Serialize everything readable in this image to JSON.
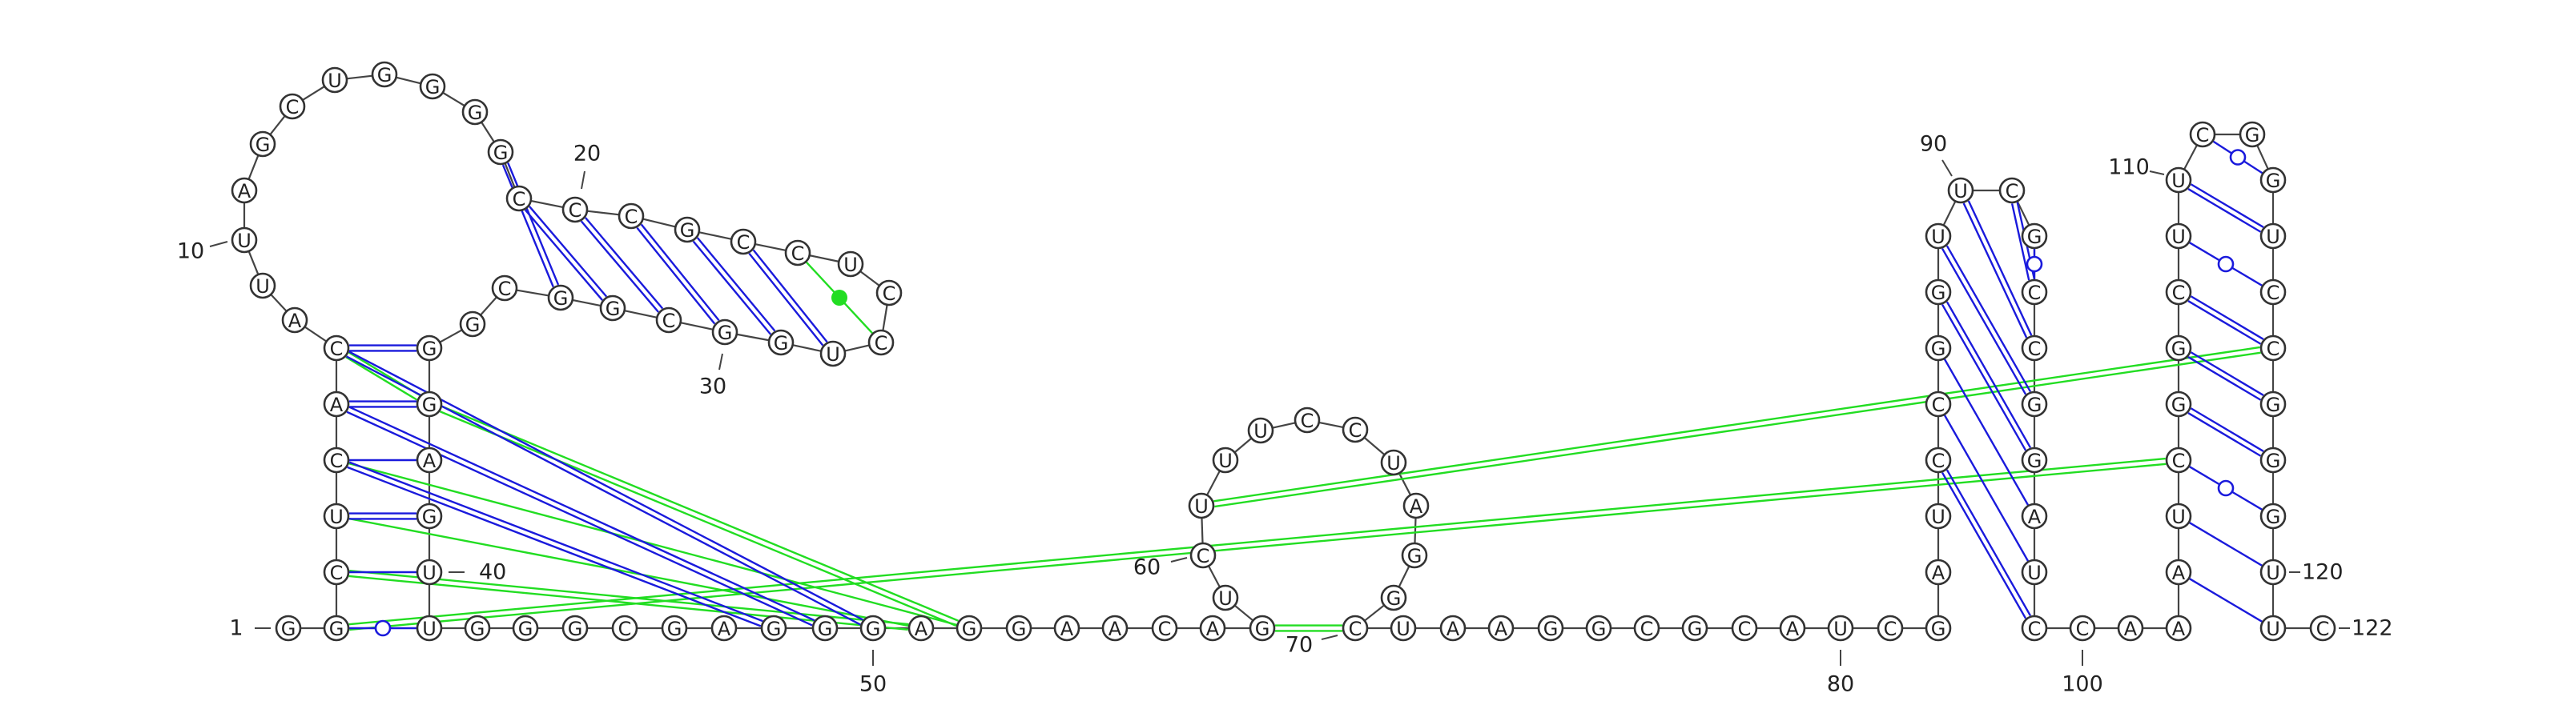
{
  "diagram": {
    "type": "rna-secondary-structure",
    "colors": {
      "canonical_pair": "#1a1adc",
      "wobble_pair": "#1a1adc",
      "tertiary_interaction": "#22dd22",
      "backbone": "#444444"
    },
    "nucleotides": [
      {
        "i": 1,
        "b": "G"
      },
      {
        "i": 2,
        "b": "G"
      },
      {
        "i": 3,
        "b": "C"
      },
      {
        "i": 4,
        "b": "U"
      },
      {
        "i": 5,
        "b": "C"
      },
      {
        "i": 6,
        "b": "A"
      },
      {
        "i": 7,
        "b": "C"
      },
      {
        "i": 8,
        "b": "A"
      },
      {
        "i": 9,
        "b": "U"
      },
      {
        "i": 10,
        "b": "U"
      },
      {
        "i": 11,
        "b": "A"
      },
      {
        "i": 12,
        "b": "G"
      },
      {
        "i": 13,
        "b": "C"
      },
      {
        "i": 14,
        "b": "U"
      },
      {
        "i": 15,
        "b": "G"
      },
      {
        "i": 16,
        "b": "G"
      },
      {
        "i": 17,
        "b": "G"
      },
      {
        "i": 18,
        "b": "G"
      },
      {
        "i": 19,
        "b": "C"
      },
      {
        "i": 20,
        "b": "C"
      },
      {
        "i": 21,
        "b": "C"
      },
      {
        "i": 22,
        "b": "G"
      },
      {
        "i": 23,
        "b": "C"
      },
      {
        "i": 24,
        "b": "C"
      },
      {
        "i": 25,
        "b": "U"
      },
      {
        "i": 26,
        "b": "C"
      },
      {
        "i": 27,
        "b": "C"
      },
      {
        "i": 28,
        "b": "U"
      },
      {
        "i": 29,
        "b": "G"
      },
      {
        "i": 30,
        "b": "G"
      },
      {
        "i": 31,
        "b": "C"
      },
      {
        "i": 32,
        "b": "G"
      },
      {
        "i": 33,
        "b": "G"
      },
      {
        "i": 34,
        "b": "C"
      },
      {
        "i": 35,
        "b": "G"
      },
      {
        "i": 36,
        "b": "G"
      },
      {
        "i": 37,
        "b": "G"
      },
      {
        "i": 38,
        "b": "A"
      },
      {
        "i": 39,
        "b": "G"
      },
      {
        "i": 40,
        "b": "U"
      },
      {
        "i": 41,
        "b": "U"
      },
      {
        "i": 42,
        "b": "G"
      },
      {
        "i": 43,
        "b": "G"
      },
      {
        "i": 44,
        "b": "G"
      },
      {
        "i": 45,
        "b": "C"
      },
      {
        "i": 46,
        "b": "G"
      },
      {
        "i": 47,
        "b": "A"
      },
      {
        "i": 48,
        "b": "G"
      },
      {
        "i": 49,
        "b": "G"
      },
      {
        "i": 50,
        "b": "G"
      },
      {
        "i": 51,
        "b": "A"
      },
      {
        "i": 52,
        "b": "G"
      },
      {
        "i": 53,
        "b": "G"
      },
      {
        "i": 54,
        "b": "A"
      },
      {
        "i": 55,
        "b": "A"
      },
      {
        "i": 56,
        "b": "C"
      },
      {
        "i": 57,
        "b": "A"
      },
      {
        "i": 58,
        "b": "G"
      },
      {
        "i": 59,
        "b": "U"
      },
      {
        "i": 60,
        "b": "C"
      },
      {
        "i": 61,
        "b": "U"
      },
      {
        "i": 62,
        "b": "U"
      },
      {
        "i": 63,
        "b": "U"
      },
      {
        "i": 64,
        "b": "C"
      },
      {
        "i": 65,
        "b": "C"
      },
      {
        "i": 66,
        "b": "U"
      },
      {
        "i": 67,
        "b": "A"
      },
      {
        "i": 68,
        "b": "G"
      },
      {
        "i": 69,
        "b": "G"
      },
      {
        "i": 70,
        "b": "C"
      },
      {
        "i": 71,
        "b": "U"
      },
      {
        "i": 72,
        "b": "A"
      },
      {
        "i": 73,
        "b": "A"
      },
      {
        "i": 74,
        "b": "G"
      },
      {
        "i": 75,
        "b": "G"
      },
      {
        "i": 76,
        "b": "C"
      },
      {
        "i": 77,
        "b": "G"
      },
      {
        "i": 78,
        "b": "C"
      },
      {
        "i": 79,
        "b": "A"
      },
      {
        "i": 80,
        "b": "U"
      },
      {
        "i": 81,
        "b": "C"
      },
      {
        "i": 82,
        "b": "G"
      },
      {
        "i": 83,
        "b": "A"
      },
      {
        "i": 84,
        "b": "U"
      },
      {
        "i": 85,
        "b": "C"
      },
      {
        "i": 86,
        "b": "C"
      },
      {
        "i": 87,
        "b": "G"
      },
      {
        "i": 88,
        "b": "G"
      },
      {
        "i": 89,
        "b": "U"
      },
      {
        "i": 90,
        "b": "U"
      },
      {
        "i": 91,
        "b": "C"
      },
      {
        "i": 92,
        "b": "G"
      },
      {
        "i": 93,
        "b": "C"
      },
      {
        "i": 94,
        "b": "C"
      },
      {
        "i": 95,
        "b": "G"
      },
      {
        "i": 96,
        "b": "G"
      },
      {
        "i": 97,
        "b": "A"
      },
      {
        "i": 98,
        "b": "U"
      },
      {
        "i": 99,
        "b": "C"
      },
      {
        "i": 100,
        "b": "C"
      },
      {
        "i": 101,
        "b": "A"
      },
      {
        "i": 102,
        "b": "A"
      },
      {
        "i": 103,
        "b": "A"
      },
      {
        "i": 104,
        "b": "U"
      },
      {
        "i": 105,
        "b": "C"
      },
      {
        "i": 106,
        "b": "G"
      },
      {
        "i": 107,
        "b": "G"
      },
      {
        "i": 108,
        "b": "C"
      },
      {
        "i": 109,
        "b": "U"
      },
      {
        "i": 110,
        "b": "U"
      },
      {
        "i": 111,
        "b": "C"
      },
      {
        "i": 112,
        "b": "G"
      },
      {
        "i": 113,
        "b": "G"
      },
      {
        "i": 114,
        "b": "U"
      },
      {
        "i": 115,
        "b": "C"
      },
      {
        "i": 116,
        "b": "C"
      },
      {
        "i": 117,
        "b": "G"
      },
      {
        "i": 118,
        "b": "G"
      },
      {
        "i": 119,
        "b": "G"
      },
      {
        "i": 120,
        "b": "U"
      },
      {
        "i": 121,
        "b": "U"
      },
      {
        "i": 122,
        "b": "C"
      }
    ],
    "pairs": [
      {
        "a": 2,
        "b": 41,
        "kind": "wobble"
      },
      {
        "a": 3,
        "b": 40,
        "kind": "single"
      },
      {
        "a": 4,
        "b": 39,
        "kind": "double"
      },
      {
        "a": 5,
        "b": 38,
        "kind": "single"
      },
      {
        "a": 6,
        "b": 37,
        "kind": "double"
      },
      {
        "a": 18,
        "b": 33,
        "kind": "double"
      },
      {
        "a": 19,
        "b": 32,
        "kind": "double"
      },
      {
        "a": 20,
        "b": 31,
        "kind": "double"
      },
      {
        "a": 21,
        "b": 30,
        "kind": "double"
      },
      {
        "a": 22,
        "b": 29,
        "kind": "double"
      },
      {
        "a": 23,
        "b": 28,
        "kind": "double"
      },
      {
        "a": 85,
        "b": 99,
        "kind": "double"
      },
      {
        "a": 86,
        "b": 98,
        "kind": "single"
      },
      {
        "a": 87,
        "b": 97,
        "kind": "single"
      },
      {
        "a": 88,
        "b": 96,
        "kind": "double"
      },
      {
        "a": 89,
        "b": 95,
        "kind": "double"
      },
      {
        "a": 90,
        "b": 94,
        "kind": "double"
      },
      {
        "a": 91,
        "b": 93,
        "kind": "double"
      },
      {
        "a": 92,
        "b": 93,
        "kind": "wobble"
      },
      {
        "a": 103,
        "b": 121,
        "kind": "single"
      },
      {
        "a": 104,
        "b": 120,
        "kind": "single"
      },
      {
        "a": 105,
        "b": 119,
        "kind": "wobble"
      },
      {
        "a": 106,
        "b": 118,
        "kind": "double"
      },
      {
        "a": 107,
        "b": 117,
        "kind": "double"
      },
      {
        "a": 108,
        "b": 116,
        "kind": "double"
      },
      {
        "a": 109,
        "b": 115,
        "kind": "wobble"
      },
      {
        "a": 110,
        "b": 114,
        "kind": "double"
      },
      {
        "a": 111,
        "b": 113,
        "kind": "wobble"
      }
    ],
    "long_pairs": [
      {
        "a": 5,
        "b": 48,
        "kind": "double"
      },
      {
        "a": 6,
        "b": 49,
        "kind": "double"
      },
      {
        "a": 7,
        "b": 50,
        "kind": "double"
      },
      {
        "a": 7,
        "b": 36,
        "kind": "double"
      }
    ],
    "tertiary": [
      {
        "a": 2,
        "b": 105,
        "kind": "double"
      },
      {
        "a": 3,
        "b": 51,
        "kind": "double"
      },
      {
        "a": 4,
        "b": 51,
        "kind": "single"
      },
      {
        "a": 5,
        "b": 52,
        "kind": "single"
      },
      {
        "a": 37,
        "b": 52,
        "kind": "double"
      },
      {
        "a": 58,
        "b": 70,
        "kind": "double"
      },
      {
        "a": 61,
        "b": 116,
        "kind": "double"
      },
      {
        "a": 7,
        "b": 37,
        "kind": "double"
      },
      {
        "a": 24,
        "b": 27,
        "kind": "dot"
      }
    ],
    "number_labels": [
      {
        "n": "1",
        "at": 1,
        "text": "1"
      },
      {
        "n": "10",
        "at": 10,
        "text": "10"
      },
      {
        "n": "20",
        "at": 19,
        "text": "20"
      },
      {
        "n": "30",
        "at": 28,
        "text": "30"
      },
      {
        "n": "40",
        "at": 40,
        "text": "40"
      },
      {
        "n": "50",
        "at": 48,
        "text": "50"
      },
      {
        "n": "60",
        "at": 57,
        "text": "60"
      },
      {
        "n": "70",
        "at": 67,
        "text": "70"
      },
      {
        "n": "80",
        "at": 77,
        "text": "80"
      },
      {
        "n": "90",
        "at": 87,
        "text": "90"
      },
      {
        "n": "100",
        "at": 98,
        "text": "100"
      },
      {
        "n": "110",
        "at": 107,
        "text": "110"
      },
      {
        "n": "120",
        "at": 117,
        "text": "120"
      },
      {
        "n": "122",
        "at": 122,
        "text": "122"
      }
    ]
  }
}
